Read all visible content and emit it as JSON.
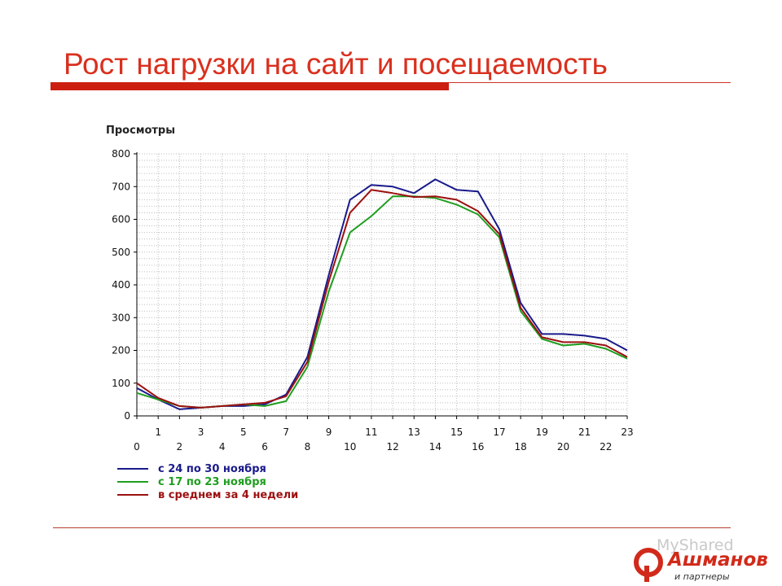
{
  "slide": {
    "title": "Рост нагрузки на сайт и посещаемость"
  },
  "logo": {
    "watermark": "MyShared",
    "brand": "Ашманов",
    "subtitle": "и партнеры",
    "brand_color": "#d12a1a"
  },
  "chart_data": {
    "type": "line",
    "title": "",
    "ylabel": "Просмотры",
    "xlabel": "",
    "ylim": [
      0,
      800
    ],
    "yticks": [
      0,
      100,
      200,
      300,
      400,
      500,
      600,
      700,
      800
    ],
    "x": [
      0,
      1,
      2,
      3,
      4,
      5,
      6,
      7,
      8,
      9,
      10,
      11,
      12,
      13,
      14,
      15,
      16,
      17,
      18,
      19,
      20,
      21,
      22,
      23
    ],
    "xticks_upper": [
      "1",
      "3",
      "5",
      "7",
      "9",
      "11",
      "13",
      "15",
      "17",
      "19",
      "21",
      "23"
    ],
    "xticks_lower": [
      "0",
      "2",
      "4",
      "6",
      "8",
      "10",
      "12",
      "14",
      "16",
      "18",
      "20",
      "22"
    ],
    "grid": true,
    "legend_position": "bottom-left",
    "series": [
      {
        "name": "с 24 по 30 ноября",
        "color": "#1a1a8c",
        "values": [
          85,
          50,
          20,
          25,
          30,
          30,
          35,
          65,
          180,
          430,
          660,
          705,
          700,
          680,
          722,
          690,
          685,
          570,
          345,
          250,
          250,
          245,
          235,
          200
        ]
      },
      {
        "name": "с 17 по 23 ноября",
        "color": "#1f9e1f",
        "values": [
          70,
          50,
          30,
          25,
          30,
          35,
          30,
          45,
          150,
          380,
          560,
          610,
          670,
          670,
          665,
          645,
          615,
          545,
          320,
          235,
          215,
          220,
          205,
          175
        ]
      },
      {
        "name": "в среднем за 4 недели",
        "color": "#9c1010",
        "values": [
          100,
          55,
          30,
          25,
          30,
          35,
          40,
          60,
          165,
          410,
          620,
          690,
          680,
          668,
          670,
          660,
          625,
          555,
          330,
          240,
          225,
          225,
          215,
          180
        ]
      }
    ]
  }
}
